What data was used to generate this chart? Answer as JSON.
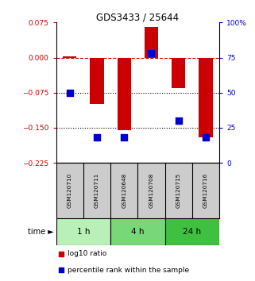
{
  "title": "GDS3433 / 25644",
  "samples": [
    "GSM120710",
    "GSM120711",
    "GSM120648",
    "GSM120708",
    "GSM120715",
    "GSM120716"
  ],
  "log10_ratio": [
    0.002,
    -0.1,
    -0.155,
    0.065,
    -0.065,
    -0.17
  ],
  "percentile_rank": [
    50,
    18,
    18,
    78,
    30,
    18
  ],
  "groups": [
    {
      "label": "1 h",
      "indices": [
        0,
        1
      ],
      "color": "#b8f0b8"
    },
    {
      "label": "4 h",
      "indices": [
        2,
        3
      ],
      "color": "#78d878"
    },
    {
      "label": "24 h",
      "indices": [
        4,
        5
      ],
      "color": "#40c040"
    }
  ],
  "left_ylim": [
    -0.225,
    0.075
  ],
  "right_ylim": [
    0,
    100
  ],
  "left_yticks": [
    0.075,
    0,
    -0.075,
    -0.15,
    -0.225
  ],
  "right_yticks": [
    100,
    75,
    50,
    25,
    0
  ],
  "hlines": [
    -0.075,
    -0.15
  ],
  "zero_line": 0,
  "bar_color": "#cc0000",
  "dot_color": "#0000cc",
  "bar_width": 0.5,
  "dot_size": 35,
  "legend_bar_label": "log10 ratio",
  "legend_dot_label": "percentile rank within the sample",
  "time_label": "time ►",
  "background_color": "#ffffff",
  "plot_bg_color": "#ffffff",
  "group_header_color": "#cccccc",
  "right_ytick_color": "#0000cc",
  "left_ytick_color": "#cc0000"
}
